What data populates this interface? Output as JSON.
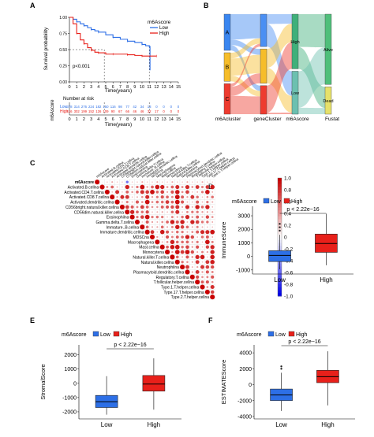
{
  "panel_letters": [
    "A",
    "B",
    "C",
    "D",
    "E",
    "F"
  ],
  "colors": {
    "low": "#2d6fe6",
    "high": "#e8201a",
    "gray": "#bdbdbd"
  },
  "chart_data": [
    {
      "id": "A",
      "type": "line",
      "title": "",
      "xlabel": "Time(years)",
      "ylabel": "Survival probability",
      "ylim": [
        0,
        1.0
      ],
      "xlim": [
        0,
        15
      ],
      "x_ticks": [
        0,
        1,
        2,
        3,
        4,
        5,
        6,
        7,
        8,
        9,
        10,
        11,
        12,
        13,
        14,
        15
      ],
      "y_ticks": [
        "0.00",
        "0.25",
        "0.50",
        "0.75",
        "1.00"
      ],
      "legend_title": "m6Ascore",
      "legend_labels": [
        "Low",
        "High"
      ],
      "pvalue": "p<0.001",
      "series": [
        {
          "name": "Low",
          "x": [
            0,
            0.5,
            1,
            1.5,
            2,
            2.5,
            3,
            3.5,
            4,
            5,
            6,
            7,
            8,
            9,
            10,
            10.5,
            11,
            11.1
          ],
          "y": [
            1.0,
            0.97,
            0.93,
            0.9,
            0.87,
            0.84,
            0.81,
            0.79,
            0.77,
            0.73,
            0.69,
            0.66,
            0.63,
            0.61,
            0.58,
            0.56,
            0.55,
            0.18
          ]
        },
        {
          "name": "High",
          "x": [
            0,
            0.5,
            1,
            1.5,
            2,
            2.5,
            3,
            3.5,
            4,
            5,
            6,
            7,
            8,
            9,
            10,
            11,
            12
          ],
          "y": [
            1.0,
            0.9,
            0.75,
            0.65,
            0.59,
            0.53,
            0.49,
            0.46,
            0.45,
            0.43,
            0.43,
            0.43,
            0.42,
            0.41,
            0.4,
            0.4,
            0.4
          ]
        }
      ],
      "risk_table": {
        "title": "Number at risk",
        "rows_label": "m6Ascore",
        "low_label": "Low",
        "high_label": "High",
        "low": [
          "378",
          "314",
          "276",
          "224",
          "182",
          "150",
          "116",
          "98",
          "77",
          "42",
          "34",
          "13",
          "0",
          "0",
          "0",
          "0"
        ],
        "high": [
          "416",
          "302",
          "199",
          "152",
          "126",
          "109",
          "90",
          "67",
          "66",
          "46",
          "46",
          "32",
          "17",
          "0",
          "0",
          "0"
        ],
        "xlabel": "Time(years)"
      }
    },
    {
      "id": "B",
      "type": "table",
      "title": "",
      "axes_labels": [
        "m6Acluster",
        "geneCluster",
        "m6Ascore",
        "Fustat"
      ],
      "nodes": [
        {
          "axis": "m6Acluster",
          "labels": [
            "A",
            "B",
            "C"
          ]
        },
        {
          "axis": "geneCluster",
          "labels": [
            "",
            "",
            ""
          ]
        },
        {
          "axis": "m6Ascore",
          "labels": [
            "High",
            "Low"
          ]
        },
        {
          "axis": "Fustat",
          "labels": [
            "Alive",
            "Dead"
          ]
        }
      ]
    },
    {
      "id": "C",
      "type": "heatmap",
      "title": "",
      "row_labels": [
        "m6Ascore",
        "Activated.B.cellna",
        "Activated.CD4.T.cellna",
        "Activated.CD8.T.cellna",
        "Activated.dendritic.cellna",
        "CD56bright.natural.killer.cellna",
        "CD56dim.natural.killer.cellna",
        "Eosinophilna",
        "Gamma.delta.T.cellna",
        "Immature..B.cellna",
        "Immature.dendritic.cellna",
        "MDSCna",
        "Macrophagena",
        "Mast.cellna",
        "Monocytena",
        "Natural.killer.T.cellna",
        "Natural.killer.cellna",
        "Neutrophilna",
        "Plasmacytoid.dendritic.cellna",
        "Regulatory.T.cellna",
        "T.follicular.helper.cellna",
        "Type.1.T.helper.cellna",
        "Type.17.T.helper.cellna",
        "Type.2.T.helper.cellna"
      ],
      "colorbar_ticks": [
        "1.0",
        "0.8",
        "0.6",
        "0.4",
        "0.2",
        "0",
        "-0.2",
        "-0.4",
        "-0.6",
        "-0.8",
        "-1.0"
      ],
      "colorbar_range": [
        -1,
        1
      ]
    },
    {
      "id": "D",
      "type": "bar",
      "title": "",
      "legend_title": "m6Ascore",
      "legend_labels": [
        "Low",
        "High"
      ],
      "pvalue": "p < 2.22e−16",
      "ylabel": "ImmuneScore",
      "categories": [
        "Low",
        "High"
      ],
      "y_ticks": [
        "3000",
        "2000",
        "1000",
        "0",
        "-1000"
      ],
      "ylim": [
        -1300,
        3700
      ],
      "boxes": [
        {
          "name": "Low",
          "whisker_low": -950,
          "q1": -380,
          "median": 70,
          "q3": 420,
          "whisker_high": 1600,
          "outliers": [
            1900,
            2150,
            2400
          ]
        },
        {
          "name": "High",
          "whisker_low": -650,
          "q1": 300,
          "median": 950,
          "q3": 1650,
          "whisker_high": 3150,
          "outliers": []
        }
      ]
    },
    {
      "id": "E",
      "type": "bar",
      "title": "",
      "legend_title": "m6Ascore",
      "legend_labels": [
        "Low",
        "High"
      ],
      "pvalue": "p < 2.22e−16",
      "ylabel": "StromalScore",
      "categories": [
        "Low",
        "High"
      ],
      "y_ticks": [
        "2000",
        "1000",
        "0",
        "-1000",
        "-2000"
      ],
      "ylim": [
        -2500,
        2700
      ],
      "boxes": [
        {
          "name": "Low",
          "whisker_low": -2200,
          "q1": -1700,
          "median": -1300,
          "q3": -850,
          "whisker_high": 500,
          "outliers": []
        },
        {
          "name": "High",
          "whisker_low": -1850,
          "q1": -550,
          "median": -50,
          "q3": 550,
          "whisker_high": 1750,
          "outliers": []
        }
      ]
    },
    {
      "id": "F",
      "type": "bar",
      "title": "",
      "legend_title": "m6Ascore",
      "legend_labels": [
        "Low",
        "High"
      ],
      "pvalue": "p < 2.22e−16",
      "ylabel": "ESTIMATEScore",
      "categories": [
        "Low",
        "High"
      ],
      "y_ticks": [
        "4000",
        "2000",
        "0",
        "-2000",
        "-4000"
      ],
      "ylim": [
        -4300,
        5000
      ],
      "boxes": [
        {
          "name": "Low",
          "whisker_low": -3300,
          "q1": -2000,
          "median": -1300,
          "q3": -550,
          "whisker_high": 1500,
          "outliers": [
            2000,
            2300
          ]
        },
        {
          "name": "High",
          "whisker_low": -2600,
          "q1": 250,
          "median": 1000,
          "q3": 1800,
          "whisker_high": 4200,
          "outliers": []
        }
      ]
    }
  ]
}
